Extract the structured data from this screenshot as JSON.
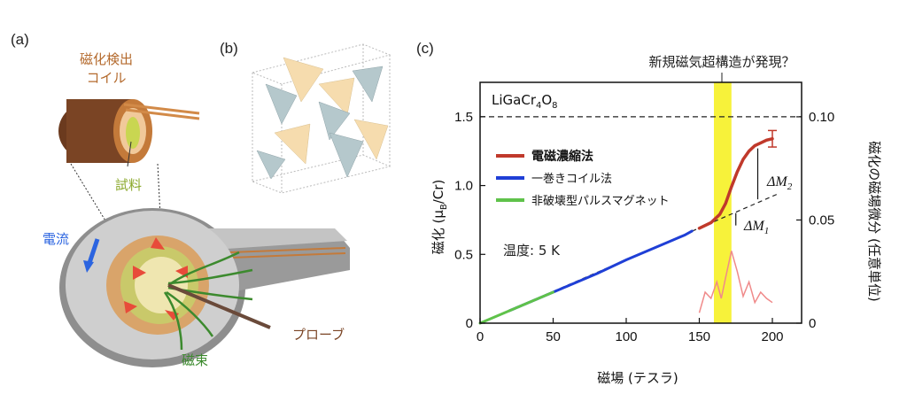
{
  "panel_a": {
    "label": "(a)",
    "coil_label_line1": "磁化検出",
    "coil_label_line2": "コイル",
    "sample_label": "試料",
    "current_label": "電流",
    "flux_label": "磁束",
    "probe_label": "プローブ"
  },
  "panel_b": {
    "label": "(b)"
  },
  "panel_c": {
    "label": "(c)",
    "annotation": "新規磁気超構造が発現？",
    "compound_prefix": "LiGaCr",
    "compound_sub1": "4",
    "compound_mid": "O",
    "compound_sub2": "8",
    "temperature": "温度: 5 K",
    "delta_m1_main": "ΔM",
    "delta_m1_sub": "1",
    "delta_m2_main": "ΔM",
    "delta_m2_sub": "2",
    "legend": [
      {
        "label": "電磁濃縮法",
        "color": "#c0392b"
      },
      {
        "label": "一巻きコイル法",
        "color": "#1f3fd6"
      },
      {
        "label": "非破壊型パルスマグネット",
        "color": "#5fc24a"
      }
    ],
    "xlabel": "磁場 (テスラ)",
    "ylabel_main": "磁化 (μ",
    "ylabel_sub": "B",
    "ylabel_end": "/Cr)",
    "y2label": "磁化の磁場微分 (任意単位)",
    "xticks": [
      "0",
      "50",
      "100",
      "150",
      "200"
    ],
    "yticks": [
      "0",
      "0.5",
      "1.0",
      "1.5"
    ],
    "y2ticks": [
      "0",
      "0.05",
      "0.10"
    ]
  },
  "chart_data": {
    "type": "line",
    "xlim": [
      0,
      220
    ],
    "ylim": [
      0,
      1.75
    ],
    "y2lim": [
      0,
      0.1167
    ],
    "highlight_x_range": [
      160,
      172
    ],
    "reference_lines_y": [
      1.5
    ],
    "series": [
      {
        "name": "電磁濃縮法",
        "color": "#c0392b",
        "x": [
          150,
          158,
          164,
          168,
          172,
          176,
          180,
          184,
          188,
          192,
          196,
          200
        ],
        "y": [
          0.69,
          0.73,
          0.79,
          0.87,
          0.99,
          1.1,
          1.19,
          1.25,
          1.29,
          1.31,
          1.33,
          1.34
        ]
      },
      {
        "name": "一巻きコイル法",
        "color": "#1f3fd6",
        "x": [
          20,
          40,
          60,
          80,
          100,
          120,
          140,
          145
        ],
        "y": [
          0.09,
          0.18,
          0.27,
          0.36,
          0.46,
          0.55,
          0.64,
          0.67
        ]
      },
      {
        "name": "非破壊型パルスマグネット",
        "color": "#5fc24a",
        "x": [
          0,
          10,
          20,
          30,
          40,
          50
        ],
        "y": [
          0.0,
          0.045,
          0.09,
          0.135,
          0.18,
          0.225
        ]
      }
    ],
    "derivative_series": [
      {
        "color": "#f08a8a",
        "x": [
          150,
          154,
          158,
          162,
          165,
          168,
          172,
          176,
          180,
          184,
          188,
          192,
          196,
          200
        ],
        "y": [
          0.005,
          0.015,
          0.012,
          0.02,
          0.012,
          0.022,
          0.035,
          0.025,
          0.013,
          0.02,
          0.01,
          0.015,
          0.012,
          0.01
        ]
      }
    ]
  }
}
